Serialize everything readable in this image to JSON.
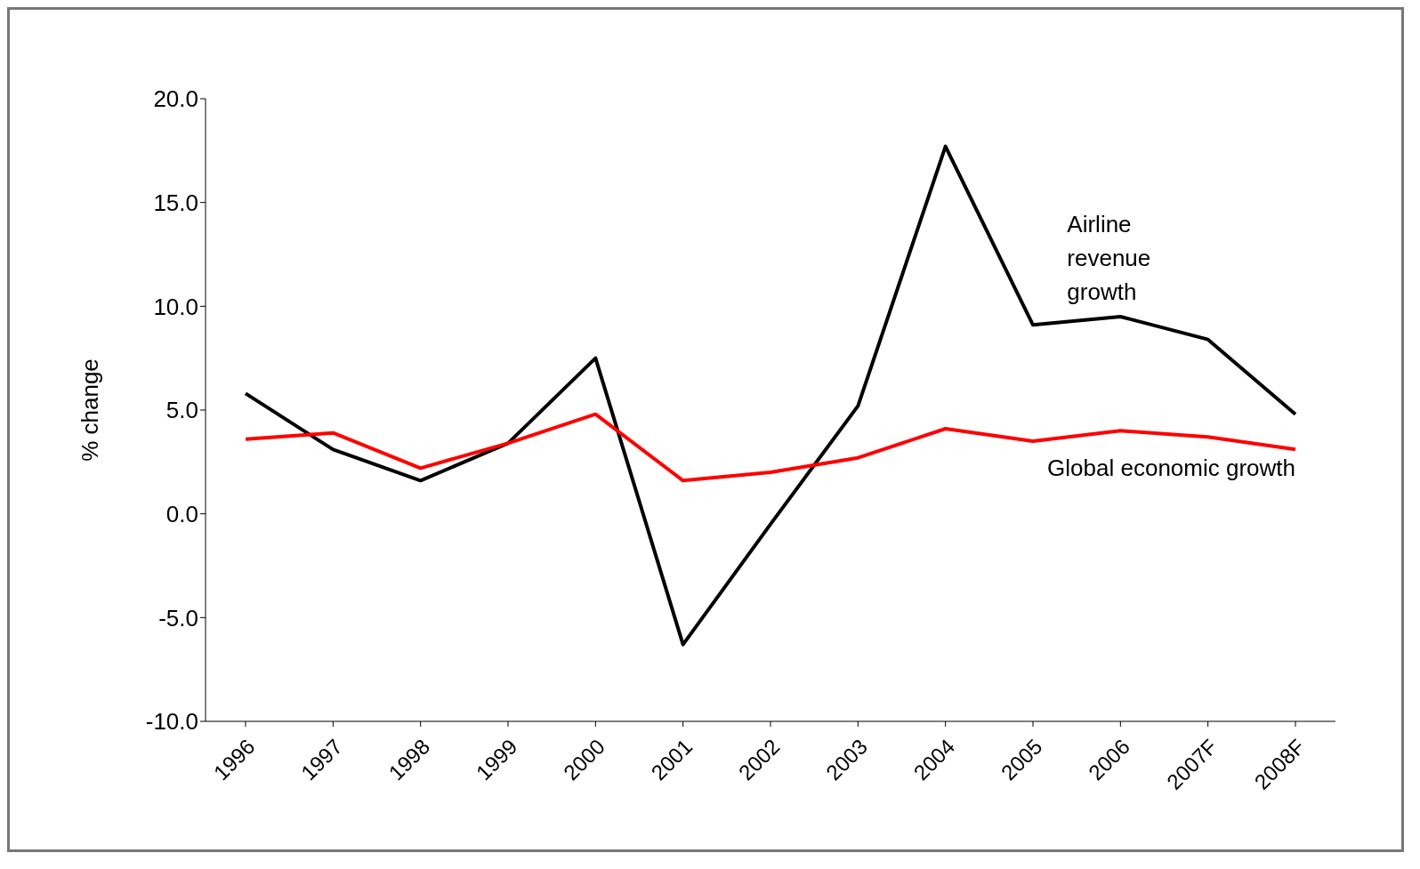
{
  "chart_data": {
    "type": "line",
    "ylabel": "% change",
    "categories": [
      "1996",
      "1997",
      "1998",
      "1999",
      "2000",
      "2001",
      "2002",
      "2003",
      "2004",
      "2005",
      "2006",
      "2007F",
      "2008F"
    ],
    "series": [
      {
        "name": "Airline revenue growth",
        "color": "#000000",
        "values": [
          5.8,
          3.1,
          1.6,
          3.4,
          7.5,
          -6.3,
          -0.5,
          5.2,
          17.7,
          9.1,
          9.5,
          8.4,
          4.8
        ]
      },
      {
        "name": "Global economic growth",
        "color": "#ff0000",
        "values": [
          3.6,
          3.9,
          2.2,
          3.4,
          4.8,
          1.6,
          2.0,
          2.7,
          4.1,
          3.5,
          4.0,
          3.7,
          3.1
        ]
      }
    ],
    "ylim": [
      -10,
      20
    ],
    "yticks": [
      {
        "value": -10,
        "label": "-10.0"
      },
      {
        "value": -5,
        "label": "-5.0"
      },
      {
        "value": 0,
        "label": "0.0"
      },
      {
        "value": 5,
        "label": "5.0"
      },
      {
        "value": 10,
        "label": "10.0"
      },
      {
        "value": 15,
        "label": "15.0"
      },
      {
        "value": 20,
        "label": "20.0"
      }
    ],
    "grid": false,
    "legend": false,
    "marker": "none",
    "line_style": "solid"
  }
}
